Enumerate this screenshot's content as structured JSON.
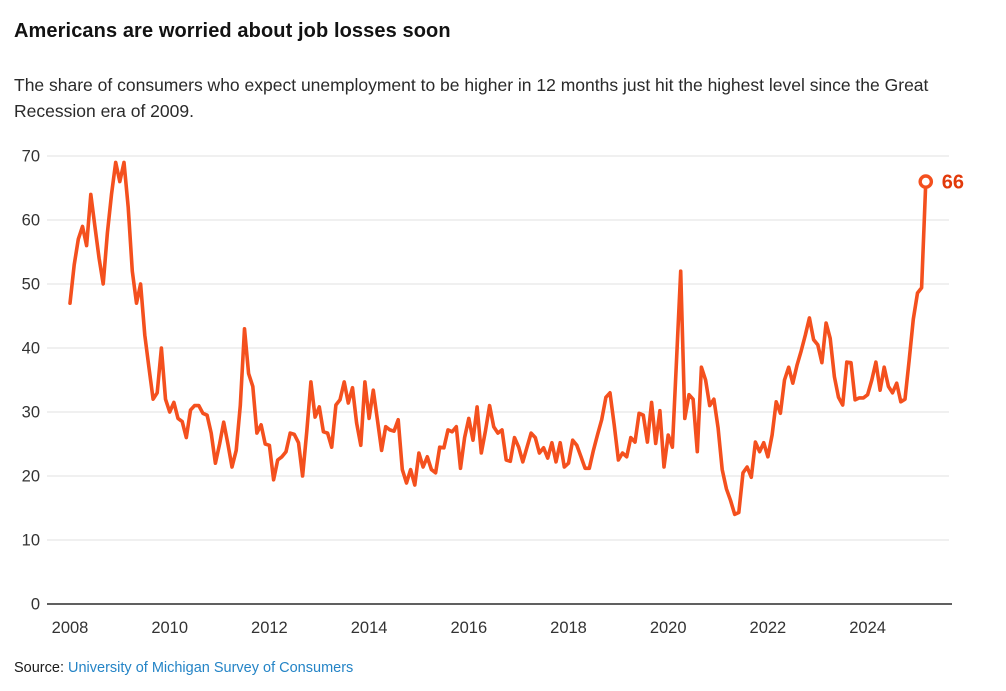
{
  "header": {
    "title": "Americans are worried about job losses soon",
    "subtitle": "The share of consumers who expect unemployment to be higher in 12 months just hit the highest level since the Great Recession era of 2009."
  },
  "source": {
    "label": "Source:",
    "link_text": "University of Michigan Survey of Consumers"
  },
  "colors": {
    "line": "#f4501e",
    "end_label": "#e23a0b",
    "grid": "#e2e2e2",
    "axis": "#2b2b2b",
    "tick_text": "#333333",
    "link": "#2484c6",
    "marker_fill": "#ffffff"
  },
  "chart_data": {
    "type": "line",
    "title": "Americans are worried about job losses soon",
    "xlabel": "",
    "ylabel": "",
    "x_start_year": 2008,
    "frequency": "monthly",
    "x_tick_labels": [
      "2008",
      "2010",
      "2012",
      "2014",
      "2016",
      "2018",
      "2020",
      "2022",
      "2024"
    ],
    "y_ticks": [
      0,
      10,
      20,
      30,
      40,
      50,
      60,
      70
    ],
    "ylim": [
      0,
      70
    ],
    "grid": true,
    "end_label": "66",
    "end_value": 66,
    "series": [
      {
        "name": "Share of consumers expecting higher unemployment in 12 months (%)",
        "values": [
          47,
          53,
          57,
          59,
          56,
          64,
          59,
          54,
          50,
          58,
          64,
          69,
          66,
          69,
          62,
          52,
          47,
          50,
          42,
          37,
          32,
          33,
          40,
          32,
          30,
          31.5,
          29,
          28.5,
          26,
          30.3,
          31,
          31,
          29.8,
          29.5,
          26.7,
          22,
          25,
          28.4,
          25,
          21.4,
          24,
          31,
          43,
          36,
          34,
          26.7,
          28,
          25,
          24.8,
          19.4,
          22.5,
          23,
          23.8,
          26.7,
          26.5,
          25.2,
          20,
          27,
          34.7,
          29.2,
          30.8,
          26.9,
          26.7,
          24.5,
          31.1,
          31.9,
          34.7,
          31.4,
          33.8,
          28.3,
          24.8,
          34.7,
          29,
          33.4,
          28.8,
          24,
          27.7,
          27.2,
          27,
          28.8,
          21,
          18.9,
          21,
          18.6,
          23.6,
          21.4,
          23,
          21,
          20.5,
          24.5,
          24.4,
          27.2,
          26.9,
          27.7,
          21.2,
          26,
          29,
          25.6,
          30.8,
          23.6,
          27,
          31,
          27.7,
          26.7,
          27.2,
          22.5,
          22.3,
          26,
          24.5,
          22.2,
          24.5,
          26.7,
          26,
          23.6,
          24.4,
          22.8,
          25.2,
          22.2,
          25.2,
          21.4,
          22,
          25.6,
          24.8,
          23,
          21.2,
          21.2,
          24,
          26.5,
          28.8,
          32.3,
          33,
          28,
          22.5,
          23.6,
          23,
          26,
          25.3,
          29.8,
          29.5,
          25.3,
          31.5,
          25.1,
          30.2,
          21.4,
          26.4,
          24.5,
          38,
          52,
          29,
          32.7,
          32,
          23.8,
          37,
          35,
          31,
          32,
          27.5,
          21,
          18,
          16.2,
          14,
          14.3,
          20.5,
          21.4,
          19.8,
          25.3,
          23.8,
          25.2,
          23,
          26.4,
          31.6,
          29.8,
          35,
          37,
          34.5,
          37.3,
          39.5,
          42,
          44.7,
          41.3,
          40.5,
          37.7,
          43.9,
          41.5,
          35.5,
          32.3,
          31.1,
          37.8,
          37.7,
          31.9,
          32.2,
          32.2,
          32.7,
          35,
          37.8,
          33.4,
          37,
          34,
          33,
          34.5,
          31.6,
          32,
          38,
          44.5,
          48.6,
          49.4,
          66
        ]
      }
    ]
  }
}
